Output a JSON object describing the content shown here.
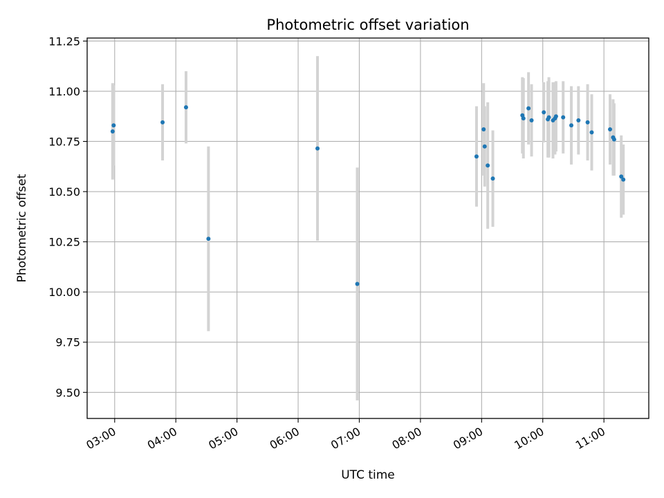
{
  "chart_data": {
    "type": "scatter",
    "title": "Photometric offset variation",
    "xlabel": "UTC time",
    "ylabel": "Photometric offset",
    "grid": true,
    "xlim": [
      "02:33",
      "11:44"
    ],
    "ylim": [
      9.37,
      11.265
    ],
    "xticks": [
      "03:00",
      "04:00",
      "05:00",
      "06:00",
      "07:00",
      "08:00",
      "09:00",
      "10:00",
      "11:00"
    ],
    "yticks": [
      "9.50",
      "9.75",
      "10.00",
      "10.25",
      "10.50",
      "10.75",
      "11.00",
      "11.25"
    ],
    "marker_color": "#1f77b4",
    "errorbar_color": "#d3d3d3",
    "series": [
      {
        "points": [
          {
            "x": "02:58",
            "y": 10.8,
            "yerr": 0.24
          },
          {
            "x": "02:59",
            "y": 10.83,
            "yerr": 0.2
          },
          {
            "x": "03:47",
            "y": 10.845,
            "yerr": 0.19
          },
          {
            "x": "04:10",
            "y": 10.92,
            "yerr": 0.18
          },
          {
            "x": "04:32",
            "y": 10.265,
            "yerr": 0.46
          },
          {
            "x": "06:19",
            "y": 10.715,
            "yerr": 0.46
          },
          {
            "x": "06:58",
            "y": 10.04,
            "yerr": 0.58
          },
          {
            "x": "08:55",
            "y": 10.675,
            "yerr": 0.25
          },
          {
            "x": "09:02",
            "y": 10.81,
            "yerr": 0.23
          },
          {
            "x": "09:03",
            "y": 10.725,
            "yerr": 0.2
          },
          {
            "x": "09:06",
            "y": 10.63,
            "yerr": 0.315
          },
          {
            "x": "09:11",
            "y": 10.565,
            "yerr": 0.24
          },
          {
            "x": "09:40",
            "y": 10.88,
            "yerr": 0.19
          },
          {
            "x": "09:41",
            "y": 10.865,
            "yerr": 0.2
          },
          {
            "x": "09:46",
            "y": 10.915,
            "yerr": 0.18
          },
          {
            "x": "09:49",
            "y": 10.855,
            "yerr": 0.18
          },
          {
            "x": "10:01",
            "y": 10.895,
            "yerr": 0.15
          },
          {
            "x": "10:05",
            "y": 10.86,
            "yerr": 0.19
          },
          {
            "x": "10:06",
            "y": 10.87,
            "yerr": 0.2
          },
          {
            "x": "10:10",
            "y": 10.855,
            "yerr": 0.19
          },
          {
            "x": "10:12",
            "y": 10.865,
            "yerr": 0.18
          },
          {
            "x": "10:13",
            "y": 10.875,
            "yerr": 0.175
          },
          {
            "x": "10:20",
            "y": 10.87,
            "yerr": 0.18
          },
          {
            "x": "10:28",
            "y": 10.83,
            "yerr": 0.195
          },
          {
            "x": "10:35",
            "y": 10.855,
            "yerr": 0.17
          },
          {
            "x": "10:44",
            "y": 10.845,
            "yerr": 0.19
          },
          {
            "x": "10:48",
            "y": 10.795,
            "yerr": 0.19
          },
          {
            "x": "11:06",
            "y": 10.81,
            "yerr": 0.175
          },
          {
            "x": "11:09",
            "y": 10.77,
            "yerr": 0.19
          },
          {
            "x": "11:10",
            "y": 10.76,
            "yerr": 0.18
          },
          {
            "x": "11:17",
            "y": 10.575,
            "yerr": 0.205
          },
          {
            "x": "11:19",
            "y": 10.56,
            "yerr": 0.175
          }
        ]
      }
    ]
  }
}
